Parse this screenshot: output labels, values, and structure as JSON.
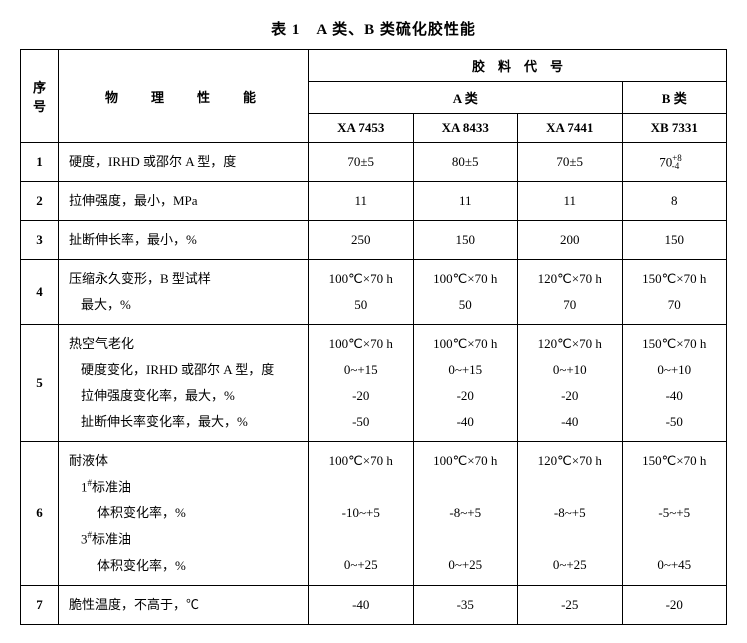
{
  "title": "表 1　A 类、B 类硫化胶性能",
  "colgroup_header": "胶　料　代　号",
  "header": {
    "seq": "序号",
    "prop": "物　理　性　能",
    "groupA": "A 类",
    "groupB": "B 类",
    "c1": "XA 7453",
    "c2": "XA 8433",
    "c3": "XA 7441",
    "c4": "XB 7331"
  },
  "rows": [
    {
      "seq": "1",
      "prop": [
        "硬度，IRHD 或邵尔 A 型，度"
      ],
      "c1": [
        "70±5"
      ],
      "c2": [
        "80±5"
      ],
      "c3": [
        "70±5"
      ],
      "c4_html": "70<sup>+8</sup><sub style='position:relative;left:-10px;'>-4</sub>"
    },
    {
      "seq": "2",
      "prop": [
        "拉伸强度，最小，MPa"
      ],
      "c1": [
        "11"
      ],
      "c2": [
        "11"
      ],
      "c3": [
        "11"
      ],
      "c4": [
        "8"
      ]
    },
    {
      "seq": "3",
      "prop": [
        "扯断伸长率，最小，%"
      ],
      "c1": [
        "250"
      ],
      "c2": [
        "150"
      ],
      "c3": [
        "200"
      ],
      "c4": [
        "150"
      ]
    },
    {
      "seq": "4",
      "prop": [
        "压缩永久变形，B 型试样",
        "最大，%"
      ],
      "c1": [
        "100℃×70 h",
        "50"
      ],
      "c2": [
        "100℃×70 h",
        "50"
      ],
      "c3": [
        "120℃×70 h",
        "70"
      ],
      "c4": [
        "150℃×70 h",
        "70"
      ]
    },
    {
      "seq": "5",
      "prop": [
        "热空气老化",
        "硬度变化，IRHD 或邵尔 A 型，度",
        "拉伸强度变化率，最大，%",
        "扯断伸长率变化率，最大，%"
      ],
      "c1": [
        "100℃×70 h",
        "0~+15",
        "-20",
        "-50"
      ],
      "c2": [
        "100℃×70 h",
        "0~+15",
        "-20",
        "-40"
      ],
      "c3": [
        "120℃×70 h",
        "0~+10",
        "-20",
        "-40"
      ],
      "c4": [
        "150℃×70 h",
        "0~+10",
        "-40",
        "-50"
      ]
    },
    {
      "seq": "6",
      "prop_html": "<span class='propline'>耐液体</span><span class='indent1'>1<sup>#</sup>标准油</span><span class='indent2'>体积变化率，%</span><span class='indent1'>3<sup>#</sup>标准油</span><span class='indent2'>体积变化率，%</span>",
      "c1": [
        "100℃×70 h",
        " ",
        "-10~+5",
        " ",
        "0~+25"
      ],
      "c2": [
        "100℃×70 h",
        " ",
        "-8~+5",
        " ",
        "0~+25"
      ],
      "c3": [
        "120℃×70 h",
        " ",
        "-8~+5",
        " ",
        "0~+25"
      ],
      "c4": [
        "150℃×70 h",
        " ",
        "-5~+5",
        " ",
        "0~+45"
      ]
    },
    {
      "seq": "7",
      "prop": [
        "脆性温度，不高于，℃"
      ],
      "c1": [
        "-40"
      ],
      "c2": [
        "-35"
      ],
      "c3": [
        "-25"
      ],
      "c4": [
        "-20"
      ]
    }
  ]
}
